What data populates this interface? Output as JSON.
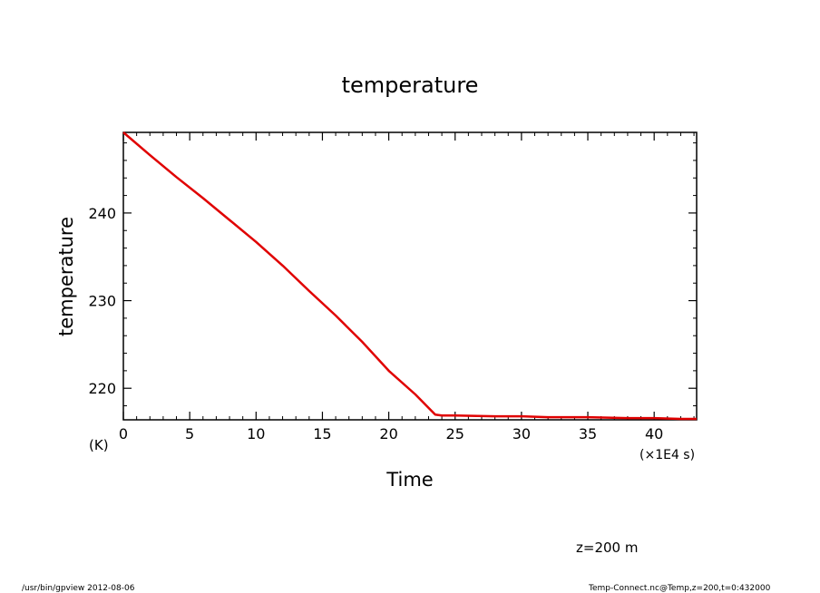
{
  "chart_data": {
    "type": "line",
    "title": "temperature",
    "xlabel": "Time",
    "ylabel": "temperature",
    "yunits": "(K)",
    "xunits": "(×1E4 s)",
    "xlim": [
      0,
      43.2
    ],
    "ylim": [
      216.4,
      249.2
    ],
    "x_ticks": [
      0,
      5,
      10,
      15,
      20,
      25,
      30,
      35,
      40
    ],
    "y_ticks": [
      220,
      230,
      240
    ],
    "grid": false,
    "line_color": "#e00000",
    "series": [
      {
        "x": [
          0,
          2,
          4,
          6,
          8,
          10,
          12,
          14,
          16,
          18,
          20,
          22,
          23.5,
          24,
          25,
          28,
          30,
          32,
          35,
          38,
          40,
          42,
          43.2
        ],
        "y": [
          249.2,
          246.6,
          244.1,
          241.7,
          239.2,
          236.7,
          234.0,
          231.1,
          228.3,
          225.3,
          222.0,
          219.3,
          217.0,
          216.9,
          216.9,
          216.8,
          216.8,
          216.7,
          216.7,
          216.6,
          216.6,
          216.5,
          216.5
        ]
      }
    ]
  },
  "footer": {
    "annotation": "z=200 m",
    "left": "/usr/bin/gpview   2012-08-06",
    "right": "Temp-Connect.nc@Temp,z=200,t=0:432000"
  }
}
